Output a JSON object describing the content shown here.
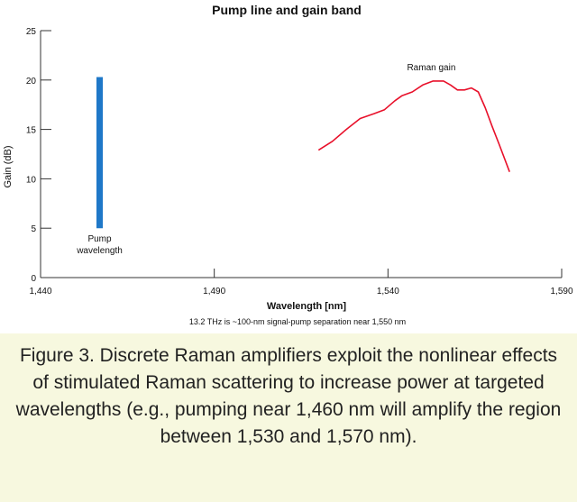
{
  "chart_data": {
    "type": "line",
    "title": "Pump line and gain band",
    "xlabel": "Wavelength [nm]",
    "ylabel": "Gain (dB)",
    "footnote": "13.2 THz is ~100-nm signal-pump separation near 1,550 nm",
    "xlim": [
      1440,
      1590
    ],
    "ylim": [
      0,
      25
    ],
    "x_ticks": [
      1440,
      1490,
      1540,
      1590
    ],
    "x_tick_labels": [
      "1,440",
      "1,490",
      "1,540",
      "1,590"
    ],
    "y_ticks": [
      0,
      5,
      10,
      15,
      20,
      25
    ],
    "y_tick_labels": [
      "0",
      "5",
      "10",
      "15",
      "20",
      "25"
    ],
    "grid": false,
    "pump_line": {
      "x": 1457,
      "y_from": 5,
      "y_to": 20.3,
      "color": "#1f78c8",
      "label_lines": [
        "Pump",
        "wavelength"
      ]
    },
    "series": [
      {
        "name": "Raman gain",
        "color": "#e8102a",
        "x": [
          1520,
          1524,
          1528,
          1532,
          1536,
          1539,
          1542,
          1544,
          1547,
          1550,
          1553,
          1556,
          1558,
          1560,
          1562,
          1564,
          1566,
          1568,
          1570,
          1572,
          1575
        ],
        "y": [
          12.9,
          13.8,
          15.0,
          16.1,
          16.6,
          17.0,
          17.9,
          18.4,
          18.8,
          19.5,
          19.9,
          19.9,
          19.5,
          19.0,
          19.0,
          19.2,
          18.8,
          17.2,
          15.3,
          13.5,
          10.7
        ]
      }
    ]
  },
  "caption": "Figure 3. Discrete Raman amplifiers exploit the nonlinear effects of stimulated Raman scattering to increase power at targeted wavelengths (e.g., pumping near 1,460 nm will amplify the region between 1,530 and 1,570 nm).",
  "colors": {
    "axis": "#333333",
    "caption_background": "#f7f8df",
    "pump": "#1f78c8",
    "gain": "#e8102a"
  }
}
